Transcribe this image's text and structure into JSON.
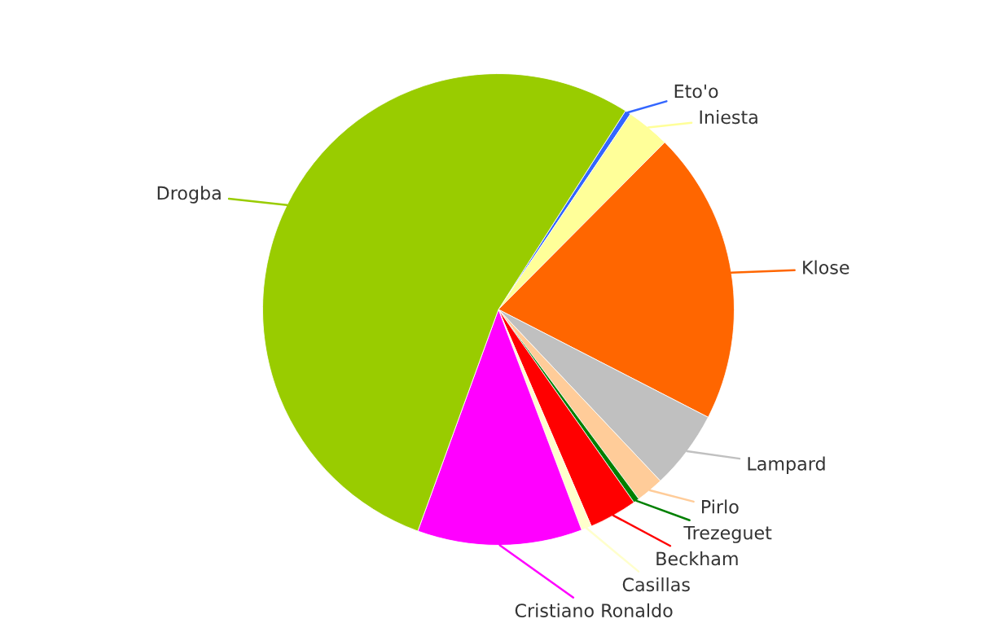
{
  "chart_data": {
    "type": "pie",
    "categories": [
      "Eto'o",
      "Iniesta",
      "Klose",
      "Lampard",
      "Pirlo",
      "Trezeguet",
      "Beckham",
      "Casillas",
      "Cristiano Ronaldo",
      "Drogba"
    ],
    "values": [
      0.4,
      3.0,
      20.1,
      5.4,
      1.9,
      0.4,
      3.3,
      0.7,
      11.3,
      53.5
    ],
    "colors": [
      "#3366ff",
      "#ffff99",
      "#ff6600",
      "#c0c0c0",
      "#ffcc99",
      "#008000",
      "#ff0000",
      "#ffffcc",
      "#ff00ff",
      "#99cc00"
    ]
  }
}
